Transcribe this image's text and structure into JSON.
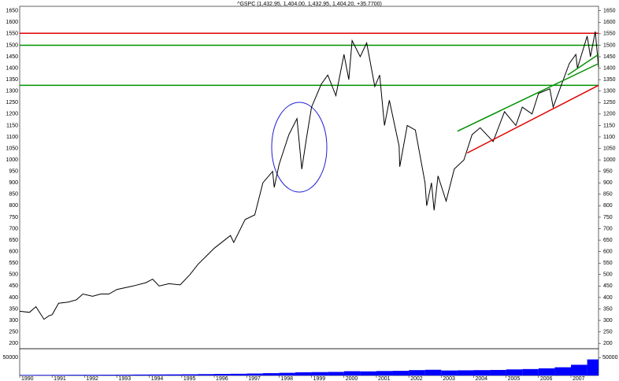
{
  "chart_data": {
    "type": "line",
    "title": "^GSPC (1,432.95, 1,404.00, 1,432.95, 1,404.20, +35.7700)",
    "color": "#000000",
    "x": [
      1990.0,
      1990.3,
      1990.5,
      1990.75,
      1990.9,
      1991.0,
      1991.2,
      1991.5,
      1991.75,
      1991.95,
      1992.25,
      1992.5,
      1992.75,
      1993.0,
      1993.5,
      1993.9,
      1994.1,
      1994.3,
      1994.6,
      1994.95,
      1995.25,
      1995.5,
      1995.75,
      1996.0,
      1996.5,
      1996.6,
      1996.95,
      1997.25,
      1997.5,
      1997.8,
      1997.85,
      1998.0,
      1998.3,
      1998.55,
      1998.7,
      1998.85,
      1999.0,
      1999.3,
      1999.5,
      1999.75,
      2000.0,
      2000.15,
      2000.25,
      2000.5,
      2000.7,
      2000.95,
      2001.1,
      2001.25,
      2001.4,
      2001.7,
      2001.72,
      2001.95,
      2002.2,
      2002.5,
      2002.55,
      2002.7,
      2002.78,
      2002.9,
      2003.15,
      2003.4,
      2003.7,
      2003.95,
      2004.2,
      2004.6,
      2004.95,
      2005.3,
      2005.5,
      2005.8,
      2006.0,
      2006.35,
      2006.45,
      2006.95,
      2007.15,
      2007.2,
      2007.5,
      2007.6,
      2007.75,
      2007.85
    ],
    "values": [
      340,
      335,
      360,
      305,
      320,
      325,
      375,
      380,
      390,
      415,
      405,
      415,
      415,
      435,
      450,
      465,
      480,
      450,
      460,
      455,
      500,
      545,
      580,
      615,
      670,
      640,
      740,
      760,
      900,
      950,
      880,
      980,
      1110,
      1180,
      960,
      1100,
      1230,
      1330,
      1370,
      1280,
      1460,
      1350,
      1520,
      1450,
      1510,
      1320,
      1370,
      1150,
      1260,
      1060,
      970,
      1150,
      1130,
      900,
      800,
      900,
      780,
      930,
      820,
      960,
      1000,
      1110,
      1140,
      1080,
      1210,
      1150,
      1230,
      1200,
      1290,
      1310,
      1230,
      1420,
      1460,
      1400,
      1540,
      1450,
      1560,
      1404.2
    ],
    "xlim": [
      1990,
      2007.85
    ],
    "xticks": [
      1990,
      1991,
      1992,
      1993,
      1994,
      1995,
      1996,
      1997,
      1998,
      1999,
      2000,
      2001,
      2002,
      2003,
      2004,
      2005,
      2006,
      2007
    ],
    "ylim": [
      180,
      1680
    ],
    "yticks": [
      200,
      250,
      300,
      350,
      400,
      450,
      500,
      550,
      600,
      650,
      700,
      750,
      800,
      850,
      900,
      950,
      1000,
      1050,
      1100,
      1150,
      1200,
      1250,
      1300,
      1350,
      1400,
      1450,
      1500,
      1550,
      1600,
      1650
    ],
    "reference_lines": [
      {
        "y": 1552,
        "color": "#e00000"
      },
      {
        "y": 1500,
        "color": "#009000"
      },
      {
        "y": 1325,
        "color": "#009000"
      }
    ],
    "trend_lines": [
      {
        "x": [
          2003.5,
          2007.85
        ],
        "y": [
          1125,
          1420
        ],
        "color": "#009000"
      },
      {
        "x": [
          2003.8,
          2007.85
        ],
        "y": [
          1030,
          1325
        ],
        "color": "#e00000"
      },
      {
        "x": [
          2006.9,
          2007.85
        ],
        "y": [
          1370,
          1460
        ],
        "color": "#009000"
      }
    ],
    "volume": {
      "color": "#0000ff",
      "ylim": [
        0,
        75000
      ],
      "yticks": [
        50000
      ],
      "x": [
        1990.0,
        1990.5,
        1991.0,
        1991.5,
        1992.0,
        1992.5,
        1993.0,
        1993.5,
        1994.0,
        1994.5,
        1995.0,
        1995.5,
        1996.0,
        1996.5,
        1997.0,
        1997.5,
        1998.0,
        1998.5,
        1999.0,
        1999.5,
        2000.0,
        2000.5,
        2001.0,
        2001.5,
        2002.0,
        2002.5,
        2003.0,
        2003.5,
        2004.0,
        2004.5,
        2005.0,
        2005.5,
        2006.0,
        2006.5,
        2007.0,
        2007.5
      ],
      "values": [
        1500,
        1600,
        1800,
        1900,
        2000,
        2100,
        2300,
        2600,
        2800,
        3000,
        3300,
        3800,
        4300,
        4800,
        5500,
        6500,
        7500,
        9000,
        9500,
        10000,
        12000,
        11500,
        12500,
        13000,
        15000,
        16000,
        14000,
        14500,
        15000,
        15500,
        17000,
        18000,
        20000,
        23000,
        30000,
        45000
      ]
    }
  }
}
